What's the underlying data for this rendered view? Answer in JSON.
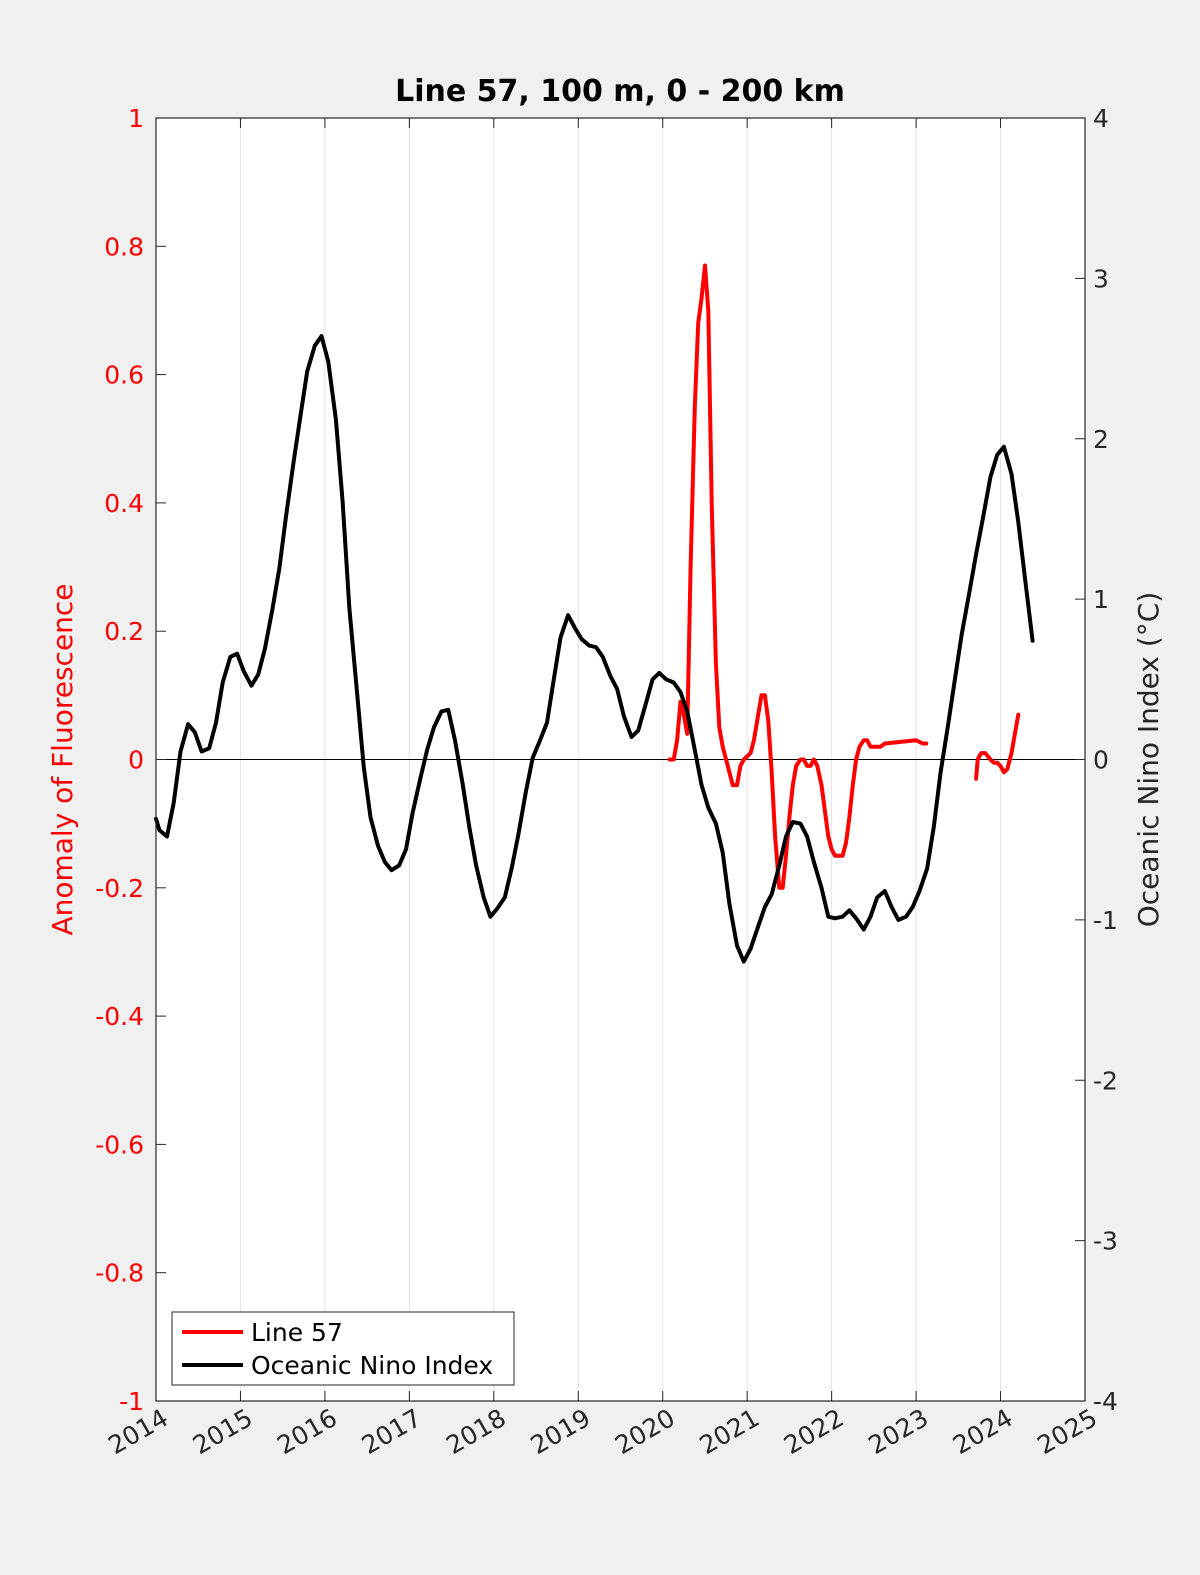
{
  "chart_data": {
    "type": "line",
    "title": "Line 57, 100 m, 0 - 200 km",
    "ylabel_left": "Anomaly of Fluorescence",
    "ylabel_right": "Oceanic Nino Index (°C)",
    "xlim": [
      2014,
      2025
    ],
    "ylim_left": [
      -1,
      1
    ],
    "ylim_right": [
      -4,
      4
    ],
    "x_ticks": [
      "2014",
      "2015",
      "2016",
      "2017",
      "2018",
      "2019",
      "2020",
      "2021",
      "2022",
      "2023",
      "2024",
      "2025"
    ],
    "y_left_ticks": [
      "1",
      "0.8",
      "0.6",
      "0.4",
      "0.2",
      "0",
      "-0.2",
      "-0.4",
      "-0.6",
      "-0.8",
      "-1"
    ],
    "y_right_ticks": [
      "4",
      "3",
      "2",
      "1",
      "0",
      "-1",
      "-2",
      "-3",
      "-4"
    ],
    "grid": "vertical",
    "zero_line": true,
    "legend_position": "bottom-left",
    "series": [
      {
        "name": "Line 57",
        "axis": "left",
        "color": "#ff0000",
        "segments": [
          [
            [
              2020.08,
              0.0
            ],
            [
              2020.13,
              0.0
            ],
            [
              2020.17,
              0.03
            ],
            [
              2020.21,
              0.09
            ],
            [
              2020.25,
              0.07
            ],
            [
              2020.29,
              0.04
            ],
            [
              2020.33,
              0.3
            ],
            [
              2020.38,
              0.55
            ],
            [
              2020.42,
              0.68
            ],
            [
              2020.46,
              0.72
            ],
            [
              2020.5,
              0.77
            ],
            [
              2020.54,
              0.7
            ],
            [
              2020.58,
              0.4
            ],
            [
              2020.63,
              0.15
            ],
            [
              2020.67,
              0.05
            ],
            [
              2020.71,
              0.02
            ],
            [
              2020.75,
              0.0
            ],
            [
              2020.79,
              -0.02
            ],
            [
              2020.83,
              -0.04
            ],
            [
              2020.88,
              -0.04
            ],
            [
              2020.92,
              -0.01
            ],
            [
              2020.96,
              0.0
            ],
            [
              2021.04,
              0.01
            ],
            [
              2021.08,
              0.03
            ],
            [
              2021.13,
              0.07
            ],
            [
              2021.17,
              0.1
            ],
            [
              2021.21,
              0.1
            ],
            [
              2021.25,
              0.06
            ],
            [
              2021.29,
              -0.02
            ],
            [
              2021.33,
              -0.12
            ],
            [
              2021.38,
              -0.2
            ],
            [
              2021.42,
              -0.2
            ],
            [
              2021.46,
              -0.15
            ],
            [
              2021.5,
              -0.09
            ],
            [
              2021.54,
              -0.04
            ],
            [
              2021.58,
              -0.01
            ],
            [
              2021.63,
              0.0
            ],
            [
              2021.67,
              0.0
            ],
            [
              2021.71,
              -0.01
            ],
            [
              2021.75,
              -0.01
            ],
            [
              2021.79,
              0.0
            ],
            [
              2021.83,
              -0.01
            ],
            [
              2021.88,
              -0.04
            ],
            [
              2021.92,
              -0.08
            ],
            [
              2021.96,
              -0.12
            ],
            [
              2022.0,
              -0.14
            ],
            [
              2022.04,
              -0.15
            ],
            [
              2022.08,
              -0.15
            ],
            [
              2022.13,
              -0.15
            ],
            [
              2022.17,
              -0.13
            ],
            [
              2022.21,
              -0.09
            ],
            [
              2022.25,
              -0.04
            ],
            [
              2022.29,
              0.0
            ],
            [
              2022.33,
              0.02
            ],
            [
              2022.38,
              0.03
            ],
            [
              2022.42,
              0.03
            ],
            [
              2022.46,
              0.02
            ],
            [
              2022.5,
              0.02
            ],
            [
              2022.54,
              0.02
            ],
            [
              2022.58,
              0.02
            ],
            [
              2022.63,
              0.025
            ],
            [
              2023.0,
              0.03
            ],
            [
              2023.08,
              0.025
            ],
            [
              2023.12,
              0.025
            ]
          ],
          [
            [
              2023.71,
              -0.03
            ],
            [
              2023.73,
              0.0
            ],
            [
              2023.77,
              0.01
            ],
            [
              2023.82,
              0.01
            ],
            [
              2023.88,
              0.0
            ],
            [
              2023.92,
              -0.005
            ],
            [
              2023.96,
              -0.005
            ],
            [
              2024.0,
              -0.01
            ],
            [
              2024.04,
              -0.02
            ],
            [
              2024.08,
              -0.015
            ],
            [
              2024.13,
              0.01
            ],
            [
              2024.17,
              0.04
            ],
            [
              2024.21,
              0.07
            ]
          ]
        ]
      },
      {
        "name": "Oceanic Nino Index",
        "axis": "right",
        "color": "#000000",
        "segments": [
          [
            [
              2014.0,
              -0.37
            ],
            [
              2014.04,
              -0.44
            ],
            [
              2014.13,
              -0.48
            ],
            [
              2014.21,
              -0.27
            ],
            [
              2014.29,
              0.05
            ],
            [
              2014.38,
              0.22
            ],
            [
              2014.46,
              0.17
            ],
            [
              2014.54,
              0.05
            ],
            [
              2014.63,
              0.07
            ],
            [
              2014.71,
              0.23
            ],
            [
              2014.79,
              0.48
            ],
            [
              2014.88,
              0.64
            ],
            [
              2014.96,
              0.66
            ],
            [
              2015.04,
              0.55
            ],
            [
              2015.13,
              0.46
            ],
            [
              2015.21,
              0.53
            ],
            [
              2015.29,
              0.69
            ],
            [
              2015.38,
              0.94
            ],
            [
              2015.46,
              1.19
            ],
            [
              2015.54,
              1.52
            ],
            [
              2015.63,
              1.86
            ],
            [
              2015.71,
              2.14
            ],
            [
              2015.79,
              2.42
            ],
            [
              2015.88,
              2.58
            ],
            [
              2015.96,
              2.64
            ],
            [
              2016.04,
              2.48
            ],
            [
              2016.13,
              2.12
            ],
            [
              2016.21,
              1.61
            ],
            [
              2016.29,
              0.94
            ],
            [
              2016.38,
              0.42
            ],
            [
              2016.46,
              -0.05
            ],
            [
              2016.54,
              -0.36
            ],
            [
              2016.63,
              -0.54
            ],
            [
              2016.71,
              -0.64
            ],
            [
              2016.79,
              -0.69
            ],
            [
              2016.88,
              -0.66
            ],
            [
              2016.96,
              -0.56
            ],
            [
              2017.04,
              -0.33
            ],
            [
              2017.13,
              -0.12
            ],
            [
              2017.21,
              0.06
            ],
            [
              2017.29,
              0.2
            ],
            [
              2017.38,
              0.3
            ],
            [
              2017.46,
              0.31
            ],
            [
              2017.54,
              0.12
            ],
            [
              2017.63,
              -0.15
            ],
            [
              2017.71,
              -0.42
            ],
            [
              2017.79,
              -0.66
            ],
            [
              2017.88,
              -0.86
            ],
            [
              2017.96,
              -0.98
            ],
            [
              2018.04,
              -0.93
            ],
            [
              2018.13,
              -0.86
            ],
            [
              2018.21,
              -0.68
            ],
            [
              2018.29,
              -0.47
            ],
            [
              2018.38,
              -0.2
            ],
            [
              2018.46,
              0.01
            ],
            [
              2018.54,
              0.11
            ],
            [
              2018.63,
              0.23
            ],
            [
              2018.71,
              0.5
            ],
            [
              2018.79,
              0.76
            ],
            [
              2018.88,
              0.9
            ],
            [
              2018.96,
              0.82
            ],
            [
              2019.04,
              0.75
            ],
            [
              2019.13,
              0.71
            ],
            [
              2019.21,
              0.7
            ],
            [
              2019.29,
              0.64
            ],
            [
              2019.38,
              0.52
            ],
            [
              2019.46,
              0.44
            ],
            [
              2019.54,
              0.27
            ],
            [
              2019.63,
              0.14
            ],
            [
              2019.71,
              0.18
            ],
            [
              2019.79,
              0.33
            ],
            [
              2019.88,
              0.5
            ],
            [
              2019.96,
              0.54
            ],
            [
              2020.04,
              0.5
            ],
            [
              2020.13,
              0.48
            ],
            [
              2020.21,
              0.42
            ],
            [
              2020.29,
              0.3
            ],
            [
              2020.38,
              0.06
            ],
            [
              2020.46,
              -0.16
            ],
            [
              2020.54,
              -0.3
            ],
            [
              2020.63,
              -0.4
            ],
            [
              2020.71,
              -0.58
            ],
            [
              2020.79,
              -0.9
            ],
            [
              2020.88,
              -1.16
            ],
            [
              2020.96,
              -1.26
            ],
            [
              2021.04,
              -1.18
            ],
            [
              2021.13,
              -1.04
            ],
            [
              2021.21,
              -0.92
            ],
            [
              2021.29,
              -0.84
            ],
            [
              2021.38,
              -0.66
            ],
            [
              2021.46,
              -0.48
            ],
            [
              2021.54,
              -0.39
            ],
            [
              2021.63,
              -0.4
            ],
            [
              2021.71,
              -0.48
            ],
            [
              2021.79,
              -0.64
            ],
            [
              2021.88,
              -0.8
            ],
            [
              2021.96,
              -0.98
            ],
            [
              2022.04,
              -0.99
            ],
            [
              2022.13,
              -0.98
            ],
            [
              2022.21,
              -0.94
            ],
            [
              2022.29,
              -0.99
            ],
            [
              2022.38,
              -1.06
            ],
            [
              2022.46,
              -0.98
            ],
            [
              2022.54,
              -0.86
            ],
            [
              2022.63,
              -0.82
            ],
            [
              2022.71,
              -0.92
            ],
            [
              2022.79,
              -1.0
            ],
            [
              2022.88,
              -0.98
            ],
            [
              2022.96,
              -0.92
            ],
            [
              2023.04,
              -0.82
            ],
            [
              2023.13,
              -0.68
            ],
            [
              2023.21,
              -0.42
            ],
            [
              2023.29,
              -0.08
            ],
            [
              2023.38,
              0.22
            ],
            [
              2023.46,
              0.5
            ],
            [
              2023.54,
              0.78
            ],
            [
              2023.63,
              1.04
            ],
            [
              2023.71,
              1.28
            ],
            [
              2023.79,
              1.5
            ],
            [
              2023.88,
              1.76
            ],
            [
              2023.96,
              1.9
            ],
            [
              2024.04,
              1.95
            ],
            [
              2024.13,
              1.78
            ],
            [
              2024.21,
              1.48
            ],
            [
              2024.29,
              1.13
            ],
            [
              2024.38,
              0.74
            ]
          ]
        ]
      }
    ]
  }
}
